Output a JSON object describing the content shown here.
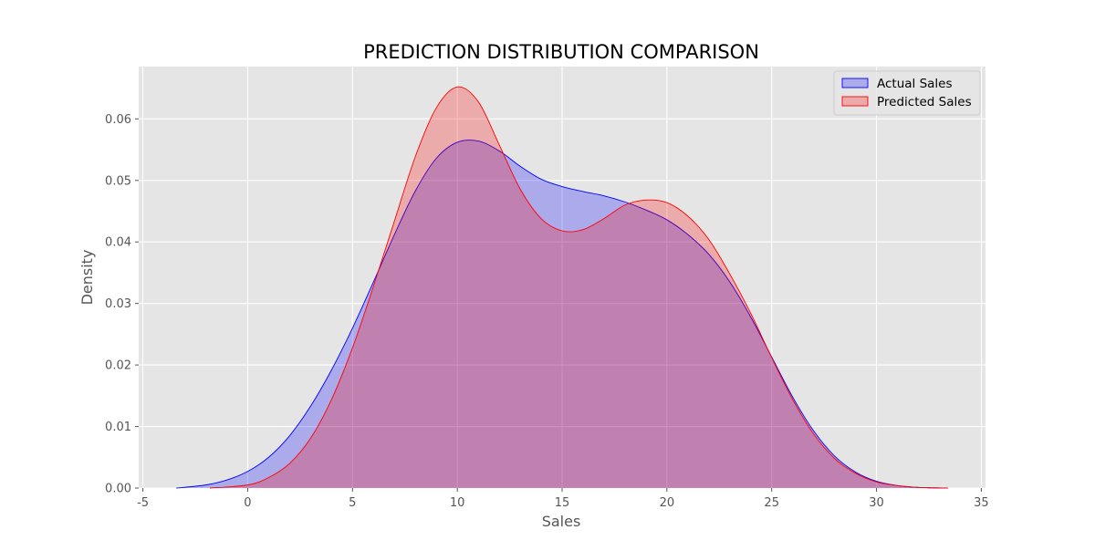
{
  "chart_data": {
    "type": "area",
    "title": "PREDICTION DISTRIBUTION COMPARISON",
    "xlabel": "Sales",
    "ylabel": "Density",
    "xlim": [
      -5.2,
      35.2
    ],
    "ylim": [
      0,
      0.0685
    ],
    "xticks": [
      -5,
      0,
      5,
      10,
      15,
      20,
      25,
      30,
      35
    ],
    "yticks": [
      0.0,
      0.01,
      0.02,
      0.03,
      0.04,
      0.05,
      0.06
    ],
    "ytick_labels": [
      "0.00",
      "0.01",
      "0.02",
      "0.03",
      "0.04",
      "0.05",
      "0.06"
    ],
    "grid": true,
    "legend_position": "top-right",
    "series": [
      {
        "name": "Actual Sales",
        "color": "#0000ff",
        "fill": "#aaaaee",
        "x": [
          -3.4,
          -2,
          -1,
          0,
          1,
          2,
          3,
          4,
          5,
          6,
          7,
          8,
          9,
          10,
          11,
          12,
          13,
          14,
          15,
          16,
          17,
          18,
          19,
          20,
          21,
          22,
          23,
          24,
          25,
          26,
          27,
          28,
          29,
          30,
          31,
          32,
          33.4
        ],
        "y": [
          0.0,
          0.0005,
          0.0013,
          0.0027,
          0.005,
          0.0085,
          0.0133,
          0.0192,
          0.026,
          0.0335,
          0.0412,
          0.0483,
          0.0536,
          0.0562,
          0.0564,
          0.0548,
          0.0523,
          0.0502,
          0.049,
          0.0482,
          0.0475,
          0.0465,
          0.0452,
          0.0436,
          0.0412,
          0.038,
          0.0335,
          0.0278,
          0.0213,
          0.0148,
          0.0093,
          0.0052,
          0.0026,
          0.0011,
          0.0004,
          0.0001,
          0.0
        ]
      },
      {
        "name": "Predicted Sales",
        "color": "#ff0000",
        "fill": "#e5a6a6",
        "x": [
          -1.8,
          0,
          1,
          2,
          3,
          4,
          5,
          6,
          7,
          8,
          9,
          10,
          11,
          12,
          13,
          14,
          15,
          16,
          17,
          18,
          19,
          20,
          21,
          22,
          23,
          24,
          25,
          26,
          27,
          28,
          29,
          30,
          31,
          32,
          33.4
        ],
        "y": [
          0.0,
          0.0005,
          0.0017,
          0.004,
          0.0081,
          0.0144,
          0.0228,
          0.0328,
          0.0434,
          0.0539,
          0.0618,
          0.0652,
          0.0628,
          0.0558,
          0.0486,
          0.0438,
          0.0418,
          0.042,
          0.0438,
          0.046,
          0.0468,
          0.0464,
          0.0442,
          0.0404,
          0.0348,
          0.0284,
          0.0212,
          0.0144,
          0.0088,
          0.0048,
          0.0024,
          0.001,
          0.0004,
          0.0001,
          0.0
        ]
      }
    ]
  }
}
